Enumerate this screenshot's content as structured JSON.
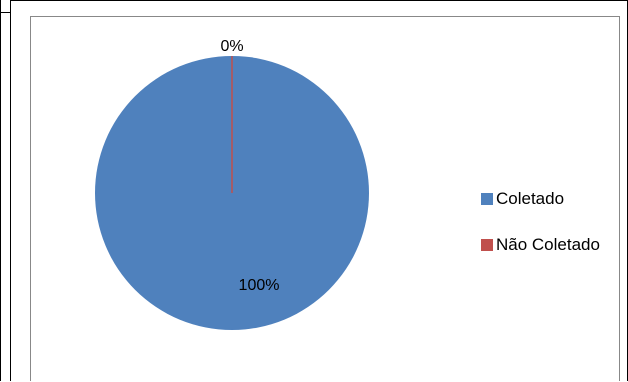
{
  "chart_data": {
    "type": "pie",
    "title": "",
    "categories": [
      "Coletado",
      "Não Coletado"
    ],
    "values": [
      100,
      0
    ],
    "data_labels": [
      "100%",
      "0%"
    ],
    "colors": [
      "#4f81bd",
      "#c0504d"
    ],
    "legend_position": "right"
  }
}
